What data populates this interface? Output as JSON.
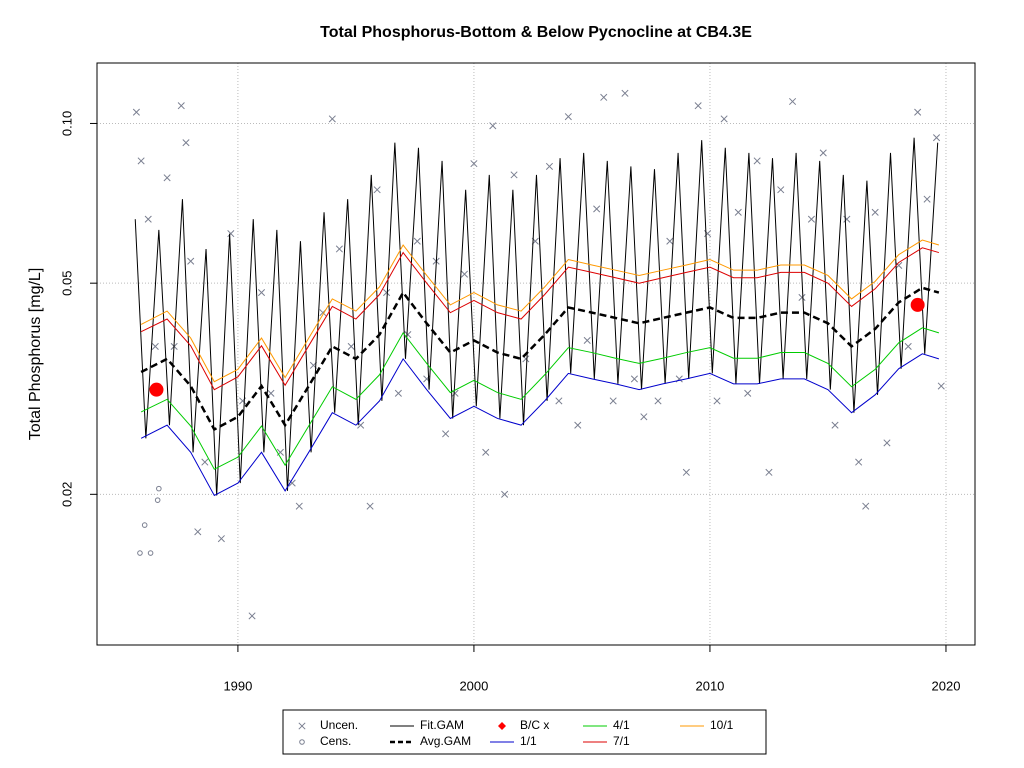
{
  "chart_data": {
    "type": "scatter",
    "title": "Total Phosphorus-Bottom & Below Pycnocline at CB4.3E",
    "y_label": "Total Phosphorus [mg/L]",
    "log_y": true,
    "grid": true,
    "xlim": [
      1984.03,
      2021.23
    ],
    "ylim": [
      0.0104,
      0.13
    ],
    "xticks": [
      1990,
      2000,
      2010,
      2020
    ],
    "yticks": [
      0.02,
      0.05,
      {
        "value": 0.1,
        "label": "0.10"
      }
    ],
    "legend": "bottom",
    "series": [
      {
        "name": "Uncen.",
        "style": "x-marker",
        "color": "#7a7f90",
        "x": [
          1985.7,
          1985.9,
          1986.2,
          1986.5,
          1987.0,
          1987.3,
          1987.6,
          1987.8,
          1988.0,
          1988.3,
          1988.6,
          1989.3,
          1989.7,
          1990.2,
          1990.6,
          1991.0,
          1991.4,
          1991.8,
          1992.3,
          1992.6,
          1993.2,
          1993.6,
          1994.0,
          1994.3,
          1994.8,
          1995.2,
          1995.6,
          1995.9,
          1996.3,
          1996.8,
          1997.2,
          1997.6,
          1998.0,
          1998.4,
          1998.8,
          1999.2,
          1999.6,
          2000.0,
          2000.5,
          2000.8,
          2001.3,
          2001.7,
          2002.2,
          2002.6,
          2003.2,
          2003.6,
          2004.0,
          2004.4,
          2004.8,
          2005.2,
          2005.5,
          2005.9,
          2006.4,
          2006.8,
          2007.2,
          2007.8,
          2008.3,
          2008.7,
          2009.0,
          2009.5,
          2009.9,
          2010.3,
          2010.6,
          2011.2,
          2011.6,
          2012.0,
          2012.5,
          2013.0,
          2013.5,
          2013.9,
          2014.3,
          2014.8,
          2015.3,
          2015.8,
          2016.3,
          2016.6,
          2017.0,
          2017.5,
          2018.0,
          2018.4,
          2018.8,
          2019.2,
          2019.6,
          2019.8
        ],
        "values": [
          0.105,
          0.085,
          0.066,
          0.038,
          0.079,
          0.038,
          0.108,
          0.092,
          0.055,
          0.017,
          0.023,
          0.0165,
          0.062,
          0.03,
          0.0118,
          0.048,
          0.031,
          0.024,
          0.021,
          0.019,
          0.035,
          0.044,
          0.102,
          0.058,
          0.038,
          0.027,
          0.019,
          0.075,
          0.048,
          0.031,
          0.04,
          0.06,
          0.033,
          0.055,
          0.026,
          0.031,
          0.052,
          0.084,
          0.024,
          0.099,
          0.02,
          0.08,
          0.036,
          0.06,
          0.083,
          0.03,
          0.103,
          0.027,
          0.039,
          0.069,
          0.112,
          0.03,
          0.114,
          0.033,
          0.028,
          0.03,
          0.06,
          0.033,
          0.022,
          0.108,
          0.062,
          0.03,
          0.102,
          0.068,
          0.031,
          0.085,
          0.022,
          0.075,
          0.11,
          0.047,
          0.066,
          0.088,
          0.027,
          0.066,
          0.023,
          0.019,
          0.068,
          0.025,
          0.054,
          0.038,
          0.105,
          0.072,
          0.094,
          0.032
        ]
      },
      {
        "name": "Cens.",
        "style": "open-circle",
        "color": "#7a7f90",
        "x": [
          1985.85,
          1986.05,
          1986.3,
          1986.6,
          1986.65
        ],
        "values": [
          0.0155,
          0.0175,
          0.0155,
          0.0195,
          0.0205
        ]
      },
      {
        "name": "Fit.GAM",
        "style": "line",
        "color": "#000000",
        "x": [
          1985.65,
          1986.1,
          1986.65,
          1987.1,
          1987.65,
          1988.1,
          1988.65,
          1989.1,
          1989.65,
          1990.1,
          1990.65,
          1991.1,
          1991.65,
          1992.1,
          1992.65,
          1993.1,
          1993.65,
          1994.1,
          1994.65,
          1995.1,
          1995.65,
          1996.1,
          1996.65,
          1997.1,
          1997.65,
          1998.1,
          1998.65,
          1999.1,
          1999.65,
          2000.1,
          2000.65,
          2001.1,
          2001.65,
          2002.1,
          2002.65,
          2003.1,
          2003.65,
          2004.1,
          2004.65,
          2005.1,
          2005.65,
          2006.1,
          2006.65,
          2007.1,
          2007.65,
          2008.1,
          2008.65,
          2009.1,
          2009.65,
          2010.1,
          2010.65,
          2011.1,
          2011.65,
          2012.1,
          2012.65,
          2013.1,
          2013.65,
          2014.1,
          2014.65,
          2015.1,
          2015.65,
          2016.1,
          2016.65,
          2017.1,
          2017.65,
          2018.1,
          2018.65,
          2019.1,
          2019.65
        ],
        "values": [
          0.066,
          0.0255,
          0.063,
          0.027,
          0.072,
          0.024,
          0.058,
          0.0199,
          0.062,
          0.021,
          0.066,
          0.024,
          0.063,
          0.0203,
          0.06,
          0.024,
          0.068,
          0.0285,
          0.072,
          0.027,
          0.08,
          0.03,
          0.092,
          0.036,
          0.09,
          0.0315,
          0.085,
          0.0278,
          0.075,
          0.0293,
          0.08,
          0.0278,
          0.075,
          0.027,
          0.08,
          0.03,
          0.086,
          0.0338,
          0.088,
          0.033,
          0.085,
          0.0323,
          0.083,
          0.0315,
          0.082,
          0.0323,
          0.088,
          0.033,
          0.093,
          0.0338,
          0.09,
          0.0323,
          0.088,
          0.0323,
          0.086,
          0.033,
          0.088,
          0.033,
          0.085,
          0.0315,
          0.08,
          0.0285,
          0.078,
          0.0308,
          0.088,
          0.0345,
          0.094,
          0.0368,
          0.092
        ]
      },
      {
        "name": "Avg.GAM",
        "style": "dashed-line",
        "color": "#000000",
        "x": [
          1985.9,
          1987,
          1988,
          1989,
          1990,
          1991,
          1992,
          1993,
          1994,
          1995,
          1996,
          1997,
          1998,
          1999,
          2000,
          2001,
          2002,
          2003,
          2004,
          2005,
          2006,
          2007,
          2008,
          2009,
          2010,
          2011,
          2012,
          2013,
          2014,
          2015,
          2016,
          2017,
          2018,
          2019,
          2019.7
        ],
        "values": [
          0.034,
          0.036,
          0.032,
          0.0265,
          0.028,
          0.032,
          0.027,
          0.032,
          0.038,
          0.036,
          0.04,
          0.048,
          0.042,
          0.037,
          0.039,
          0.037,
          0.036,
          0.04,
          0.045,
          0.044,
          0.043,
          0.042,
          0.043,
          0.044,
          0.045,
          0.043,
          0.043,
          0.044,
          0.044,
          0.042,
          0.038,
          0.041,
          0.046,
          0.049,
          0.048
        ]
      },
      {
        "name": "B/C x",
        "style": "filled-dot",
        "color": "#ff0000",
        "x": [
          1986.55,
          2018.8
        ],
        "values": [
          0.0315,
          0.0455
        ]
      },
      {
        "name": "1/1",
        "style": "line",
        "color": "#0000cc",
        "x": [
          1985.9,
          1987,
          1988,
          1989,
          1990,
          1991,
          1992,
          1993,
          1994,
          1995,
          1996,
          1997,
          1998,
          1999,
          2000,
          2001,
          2002,
          2003,
          2004,
          2005,
          2006,
          2007,
          2008,
          2009,
          2010,
          2011,
          2012,
          2013,
          2014,
          2015,
          2016,
          2017,
          2018,
          2019,
          2019.7
        ],
        "values": [
          0.0255,
          0.027,
          0.024,
          0.0199,
          0.021,
          0.024,
          0.0203,
          0.024,
          0.0285,
          0.027,
          0.03,
          0.036,
          0.0315,
          0.0278,
          0.0293,
          0.0278,
          0.027,
          0.03,
          0.0338,
          0.033,
          0.0323,
          0.0315,
          0.0323,
          0.033,
          0.0338,
          0.0323,
          0.0323,
          0.033,
          0.033,
          0.0315,
          0.0285,
          0.0308,
          0.0345,
          0.0368,
          0.036
        ]
      },
      {
        "name": "4/1",
        "style": "line",
        "color": "#00cc00",
        "x": [
          1985.9,
          1987,
          1988,
          1989,
          1990,
          1991,
          1992,
          1993,
          1994,
          1995,
          1996,
          1997,
          1998,
          1999,
          2000,
          2001,
          2002,
          2003,
          2004,
          2005,
          2006,
          2007,
          2008,
          2009,
          2010,
          2011,
          2012,
          2013,
          2014,
          2015,
          2016,
          2017,
          2018,
          2019,
          2019.7
        ],
        "values": [
          0.0286,
          0.0302,
          0.0269,
          0.0223,
          0.0235,
          0.0269,
          0.0227,
          0.0269,
          0.0319,
          0.0302,
          0.0336,
          0.0403,
          0.0353,
          0.0311,
          0.0328,
          0.0311,
          0.0302,
          0.0336,
          0.0378,
          0.037,
          0.0361,
          0.0353,
          0.0361,
          0.037,
          0.0378,
          0.0361,
          0.0361,
          0.037,
          0.037,
          0.0353,
          0.0319,
          0.0344,
          0.0386,
          0.0412,
          0.0403
        ]
      },
      {
        "name": "7/1",
        "style": "line",
        "color": "#dd0000",
        "x": [
          1985.9,
          1987,
          1988,
          1989,
          1990,
          1991,
          1992,
          1993,
          1994,
          1995,
          1996,
          1997,
          1998,
          1999,
          2000,
          2001,
          2002,
          2003,
          2004,
          2005,
          2006,
          2007,
          2008,
          2009,
          2010,
          2011,
          2012,
          2013,
          2014,
          2015,
          2016,
          2017,
          2018,
          2019,
          2019.7
        ],
        "values": [
          0.0405,
          0.0428,
          0.0381,
          0.0315,
          0.0333,
          0.0381,
          0.0321,
          0.0381,
          0.0452,
          0.0428,
          0.0476,
          0.0571,
          0.05,
          0.044,
          0.0464,
          0.044,
          0.0428,
          0.0476,
          0.0536,
          0.0524,
          0.0512,
          0.05,
          0.0512,
          0.0524,
          0.0536,
          0.0512,
          0.0512,
          0.0524,
          0.0524,
          0.05,
          0.0452,
          0.0488,
          0.0547,
          0.0583,
          0.0571
        ]
      },
      {
        "name": "10/1",
        "style": "line",
        "color": "#ff9900",
        "x": [
          1985.9,
          1987,
          1988,
          1989,
          1990,
          1991,
          1992,
          1993,
          1994,
          1995,
          1996,
          1997,
          1998,
          1999,
          2000,
          2001,
          2002,
          2003,
          2004,
          2005,
          2006,
          2007,
          2008,
          2009,
          2010,
          2011,
          2012,
          2013,
          2014,
          2015,
          2016,
          2017,
          2018,
          2019,
          2019.7
        ],
        "values": [
          0.0418,
          0.0443,
          0.0394,
          0.0326,
          0.0344,
          0.0394,
          0.0332,
          0.0394,
          0.0467,
          0.0443,
          0.0492,
          0.059,
          0.0517,
          0.0455,
          0.048,
          0.0455,
          0.0443,
          0.0492,
          0.0554,
          0.0541,
          0.0529,
          0.0517,
          0.0529,
          0.0541,
          0.0554,
          0.0529,
          0.0529,
          0.0541,
          0.0541,
          0.0517,
          0.0467,
          0.0504,
          0.0566,
          0.0603,
          0.059
        ]
      }
    ]
  }
}
